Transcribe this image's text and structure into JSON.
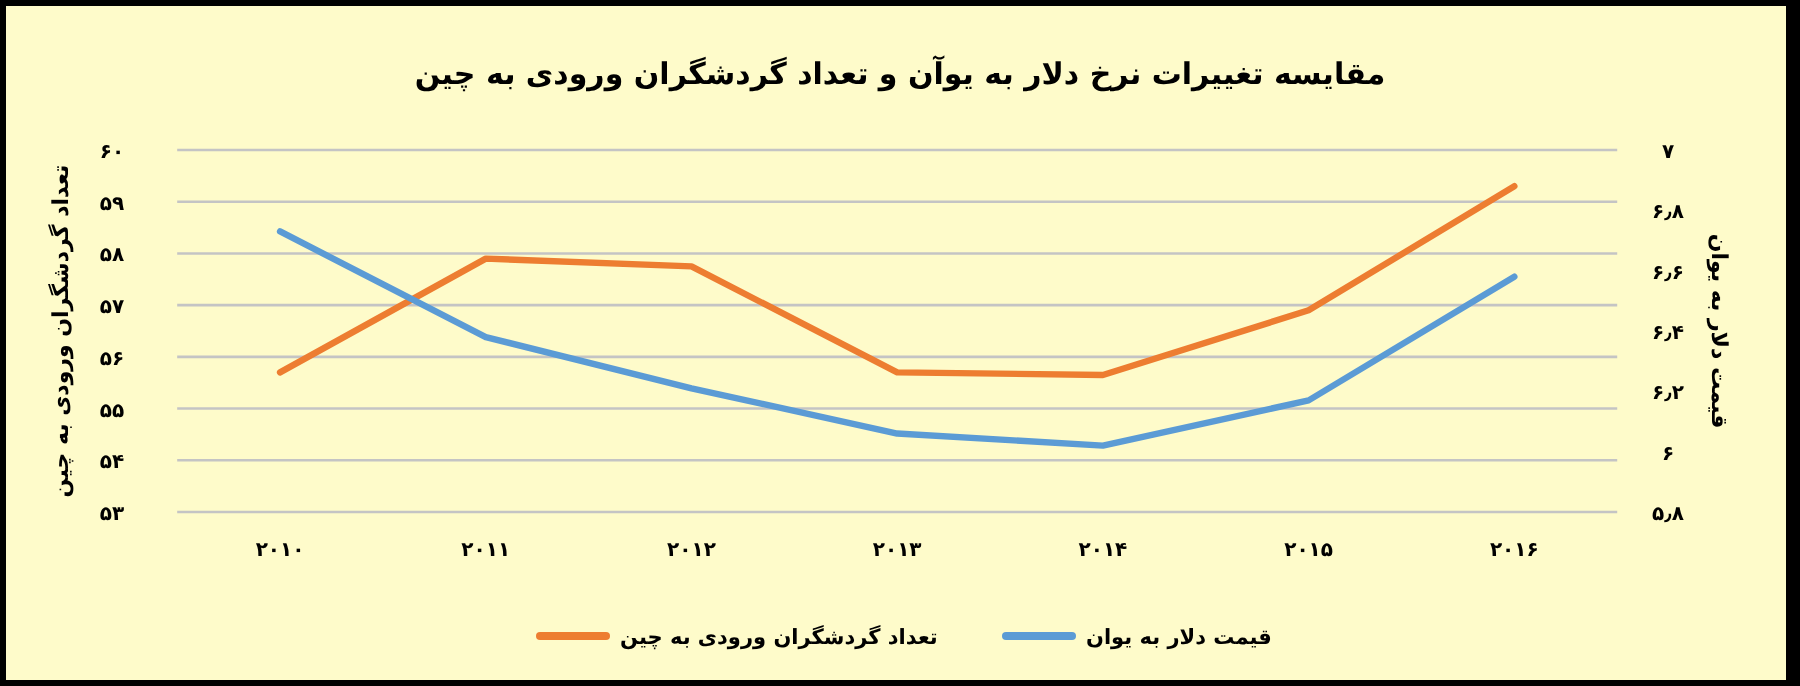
{
  "chart_data": {
    "type": "line",
    "title": "مقایسه تغییرات نرخ دلار به یوآن و تعداد گردشگران ورودی به چین",
    "ylabel": "تعداد گردشگران ورودی به چین",
    "y2label": "قیمت دلار به یوان",
    "categories": [
      "۲۰۱۰",
      "۲۰۱۱",
      "۲۰۱۲",
      "۲۰۱۳",
      "۲۰۱۴",
      "۲۰۱۵",
      "۲۰۱۶"
    ],
    "series": [
      {
        "name": "تعداد گردشگران ورودی به چین",
        "color": "#ed7d31",
        "values": [
          55.7,
          57.9,
          57.75,
          55.7,
          55.65,
          56.9,
          59.3
        ]
      },
      {
        "name": "قیمت دلار به یوان",
        "color": "#5b9bd5",
        "axis": "y2",
        "values": [
          6.73,
          6.38,
          6.21,
          6.06,
          6.02,
          6.17,
          6.58
        ]
      }
    ],
    "ylim": [
      53,
      60
    ],
    "yticks": [
      {
        "value": 53,
        "label": "۵۳"
      },
      {
        "value": 54,
        "label": "۵۴"
      },
      {
        "value": 55,
        "label": "۵۵"
      },
      {
        "value": 56,
        "label": "۵۶"
      },
      {
        "value": 57,
        "label": "۵۷"
      },
      {
        "value": 58,
        "label": "۵۸"
      },
      {
        "value": 59,
        "label": "۵۹"
      },
      {
        "value": 60,
        "label": "۶۰"
      }
    ],
    "y2lim": [
      5.8,
      7
    ],
    "y2ticks": [
      {
        "value": 5.8,
        "label": "۵٫۸"
      },
      {
        "value": 6,
        "label": "۶"
      },
      {
        "value": 6.2,
        "label": "۶٫۲"
      },
      {
        "value": 6.4,
        "label": "۶٫۴"
      },
      {
        "value": 6.6,
        "label": "۶٫۶"
      },
      {
        "value": 6.8,
        "label": "۶٫۸"
      },
      {
        "value": 7,
        "label": "۷"
      }
    ],
    "grid": "y",
    "legend": "bottom",
    "marker": "none",
    "line_style": "solid"
  }
}
